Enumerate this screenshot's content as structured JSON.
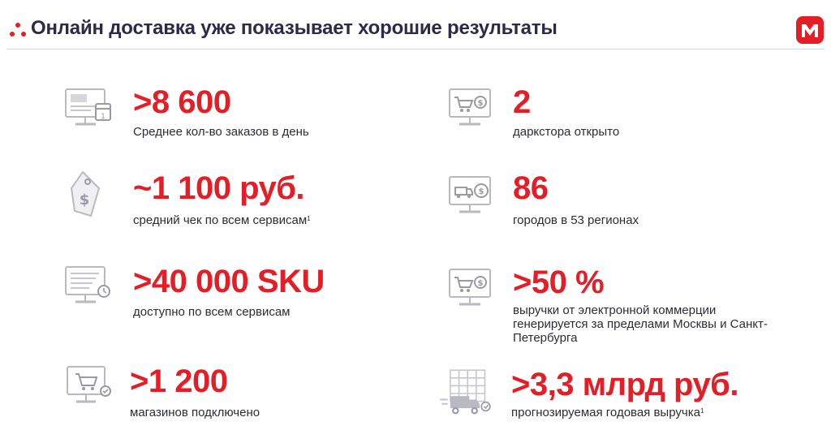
{
  "header": {
    "title": "Онлайн доставка уже показывает хорошие результаты",
    "accent_color": "#e31e26",
    "title_color": "#2b2a4a"
  },
  "stats_left": [
    {
      "value": ">8 600",
      "description": "Среднее кол-во заказов в день",
      "footnote": "",
      "icon": "calendar-monitor-icon"
    },
    {
      "value": "~1 100 руб.",
      "description": "средний чек по всем сервисам",
      "footnote": "1",
      "icon": "price-tag-icon"
    },
    {
      "value": ">40 000 SKU",
      "description": "доступно по всем сервисам",
      "footnote": "",
      "icon": "checklist-monitor-icon"
    },
    {
      "value": ">1 200",
      "description": "магазинов подключено",
      "footnote": "",
      "icon": "cart-monitor-icon"
    }
  ],
  "stats_right": [
    {
      "value": "2",
      "description": "даркстора открыто",
      "footnote": "",
      "icon": "cart-dollar-monitor-icon"
    },
    {
      "value": "86",
      "description": "городов в 53 регионах",
      "footnote": "",
      "icon": "delivery-monitor-icon"
    },
    {
      "value": ">50 %",
      "description": "выручки от электронной коммерции генерируется за пределами Москвы и Санкт-Петербурга",
      "footnote": "",
      "icon": "cart-dollar-monitor-icon"
    },
    {
      "value": ">3,3 млрд руб.",
      "description": "прогнозируемая годовая выручка",
      "footnote": "1",
      "icon": "delivery-truck-icon"
    }
  ]
}
